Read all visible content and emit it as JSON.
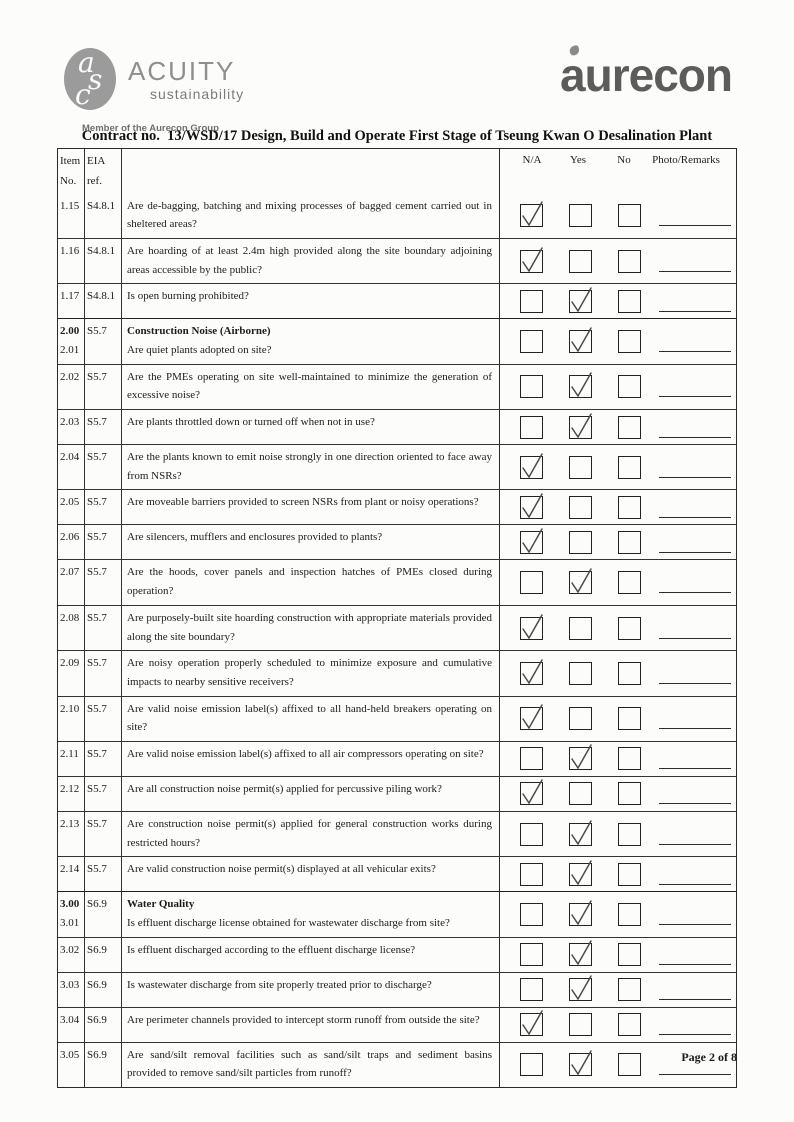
{
  "page": {
    "title": "Contract no.  13/WSD/17 Design, Build and Operate First Stage of Tseung Kwan O Desalination Plant",
    "footer": "Page 2 of 8"
  },
  "logos": {
    "acuity": {
      "monogram": "asc",
      "name": "ACUITY",
      "subtitle": "sustainability",
      "member": "Member of the Aurecon Group"
    },
    "aurecon": {
      "wordmark": "aurecon"
    }
  },
  "colors": {
    "logo_gray": "#8e8e8e",
    "aurecon_gray": "#5c5c5c",
    "ink": "#1c1c1c",
    "paper": "#fcfcfb"
  },
  "table": {
    "headers": {
      "item_line1": "Item",
      "item_line2": "No.",
      "eia": "EIA ref.",
      "na": "N/A",
      "yes": "Yes",
      "no": "No",
      "remarks": "Photo/Remarks"
    },
    "rows": [
      {
        "item": "1.15",
        "eia": "S4.8.1",
        "question": "Are de-bagging, batching and mixing processes of bagged cement carried out in sheltered areas?",
        "checked": "na"
      },
      {
        "item": "1.16",
        "eia": "S4.8.1",
        "question": "Are hoarding of at least 2.4m high provided along the site boundary adjoining areas accessible by the public?",
        "checked": "na"
      },
      {
        "item": "1.17",
        "eia": "S4.8.1",
        "question": "Is open burning prohibited?",
        "checked": "yes"
      },
      {
        "item": "2.00",
        "item2": "2.01",
        "eia": "S5.7",
        "section": "Construction Noise (Airborne)",
        "question": "Are quiet plants adopted on site?",
        "checked": "yes"
      },
      {
        "item": "2.02",
        "eia": "S5.7",
        "question": "Are the PMEs operating on site well-maintained to minimize the generation of excessive noise?",
        "checked": "yes"
      },
      {
        "item": "2.03",
        "eia": "S5.7",
        "question": "Are plants throttled down or turned off when not in use?",
        "checked": "yes"
      },
      {
        "item": "2.04",
        "eia": "S5.7",
        "question": "Are the plants known to emit noise strongly in one direction oriented to face away from NSRs?",
        "checked": "na"
      },
      {
        "item": "2.05",
        "eia": "S5.7",
        "question": "Are moveable barriers provided to screen NSRs from plant or noisy operations?",
        "checked": "na"
      },
      {
        "item": "2.06",
        "eia": "S5.7",
        "question": "Are silencers, mufflers and enclosures provided to plants?",
        "checked": "na"
      },
      {
        "item": "2.07",
        "eia": "S5.7",
        "question": "Are the hoods, cover panels and inspection hatches of PMEs closed during operation?",
        "checked": "yes"
      },
      {
        "item": "2.08",
        "eia": "S5.7",
        "question": "Are purposely-built site hoarding construction with appropriate materials provided along the site boundary?",
        "checked": "na"
      },
      {
        "item": "2.09",
        "eia": "S5.7",
        "question": "Are noisy operation properly scheduled to minimize exposure and cumulative impacts to nearby sensitive receivers?",
        "checked": "na"
      },
      {
        "item": "2.10",
        "eia": "S5.7",
        "question": "Are valid noise emission label(s) affixed to all hand-held breakers operating on site?",
        "checked": "na"
      },
      {
        "item": "2.11",
        "eia": "S5.7",
        "question": "Are valid noise emission label(s) affixed to all air compressors operating on site?",
        "checked": "yes"
      },
      {
        "item": "2.12",
        "eia": "S5.7",
        "question": "Are all construction noise permit(s) applied for percussive piling work?",
        "checked": "na"
      },
      {
        "item": "2.13",
        "eia": "S5.7",
        "question": "Are construction noise permit(s) applied for general construction works during restricted hours?",
        "checked": "yes"
      },
      {
        "item": "2.14",
        "eia": "S5.7",
        "question": "Are valid construction noise permit(s) displayed at all vehicular exits?",
        "checked": "yes"
      },
      {
        "item": "3.00",
        "item2": "3.01",
        "eia": "S6.9",
        "section": "Water Quality",
        "question": "Is effluent discharge license obtained for wastewater discharge from site?",
        "checked": "yes"
      },
      {
        "item": "3.02",
        "eia": "S6.9",
        "question": "Is effluent discharged according to the effluent discharge license?",
        "checked": "yes"
      },
      {
        "item": "3.03",
        "eia": "S6.9",
        "question": "Is wastewater discharge from site properly treated prior to discharge?",
        "checked": "yes"
      },
      {
        "item": "3.04",
        "eia": "S6.9",
        "question": "Are perimeter channels provided to intercept storm runoff from outside the site?",
        "checked": "na"
      },
      {
        "item": "3.05",
        "eia": "S6.9",
        "question": "Are sand/silt removal facilities such as sand/silt traps and sediment basins provided to remove sand/silt particles from runoff?",
        "checked": "yes"
      }
    ]
  }
}
